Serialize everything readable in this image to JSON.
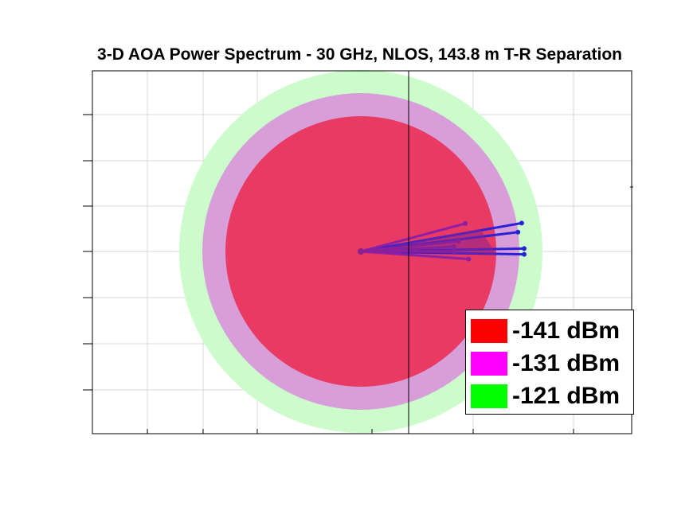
{
  "chart_data": {
    "type": "polar-area",
    "title": "3-D AOA Power Spectrum - 30 GHz, NLOS, 143.8 m T-R Separation",
    "xlabel": "",
    "ylabel": "",
    "grid": true,
    "legend_position": "bottom-right",
    "rings": [
      {
        "name": "-141 dBm",
        "level": -141,
        "color": "#e83a63"
      },
      {
        "name": "-131 dBm",
        "level": -131,
        "color": "#d89ed9"
      },
      {
        "name": "-121 dBm",
        "level": -121,
        "color": "#ccfccc"
      }
    ],
    "legend": [
      {
        "label": "-141 dBm",
        "color": "#ff0000"
      },
      {
        "label": "-131 dBm",
        "color": "#ff00ff"
      },
      {
        "label": "-121 dBm",
        "color": "#00ff00"
      }
    ],
    "lobes": [
      {
        "azimuth_deg": 10,
        "power_dbm": -124
      },
      {
        "azimuth_deg": 7,
        "power_dbm": -125
      },
      {
        "azimuth_deg": 1,
        "power_dbm": -124
      },
      {
        "azimuth_deg": -1,
        "power_dbm": -124
      },
      {
        "azimuth_deg": 15,
        "power_dbm": -135
      },
      {
        "azimuth_deg": -4,
        "power_dbm": -135
      },
      {
        "azimuth_deg": 6,
        "power_dbm": -137
      },
      {
        "azimuth_deg": 3,
        "power_dbm": -138
      },
      {
        "azimuth_deg": 0,
        "power_dbm": -138
      }
    ]
  }
}
